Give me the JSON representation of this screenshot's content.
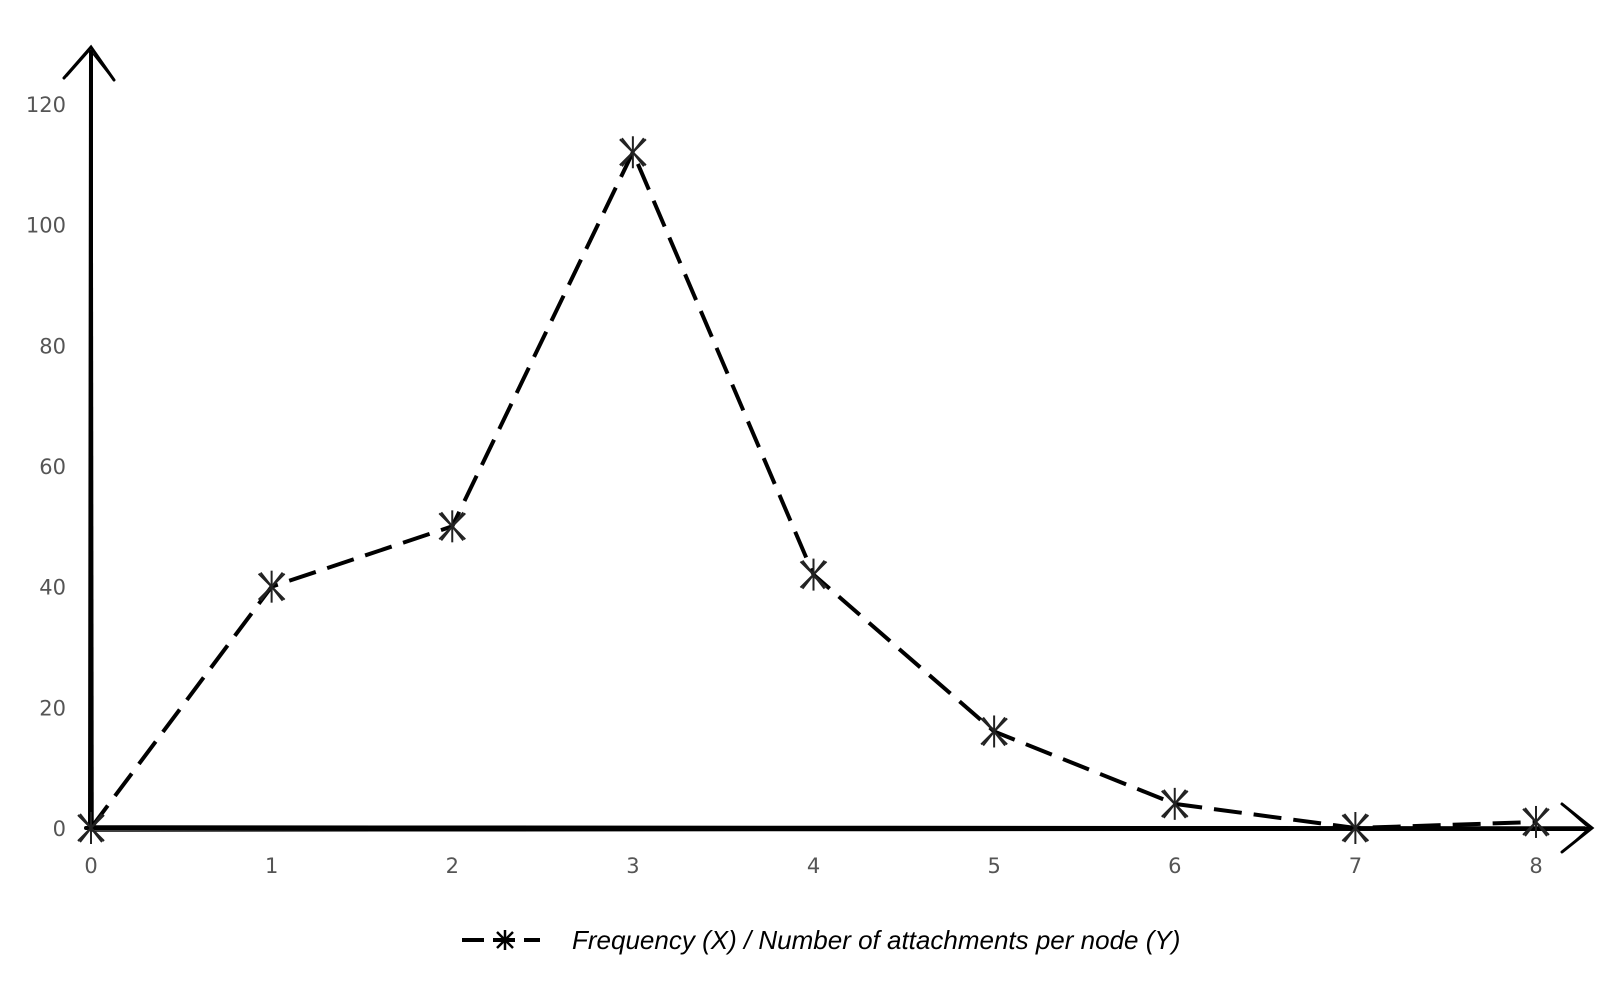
{
  "chart_data": {
    "type": "line",
    "x": [
      0,
      1,
      2,
      3,
      4,
      5,
      6,
      7,
      8
    ],
    "series": [
      {
        "name": "Frequency (X) / Number of attachments per node (Y)",
        "values": [
          0,
          40,
          50,
          112,
          42,
          16,
          4,
          0,
          1
        ],
        "line_style": "dashed",
        "marker": "asterisk",
        "color": "#000000"
      }
    ],
    "xlim": [
      0,
      8
    ],
    "ylim": [
      0,
      120
    ],
    "xticks": [
      "0",
      "1",
      "2",
      "3",
      "4",
      "5",
      "6",
      "7",
      "8"
    ],
    "yticks": [
      "0",
      "20",
      "40",
      "60",
      "80",
      "100",
      "120"
    ],
    "grid": false,
    "legend_position": "bottom-center",
    "title": "",
    "xlabel": "",
    "ylabel": ""
  }
}
